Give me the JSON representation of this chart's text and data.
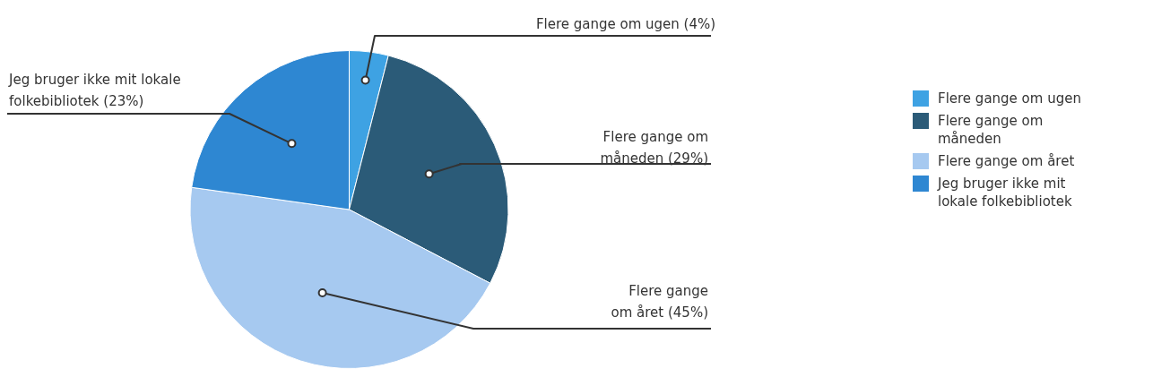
{
  "chart_data": {
    "type": "pie",
    "categories": [
      "Flere gange om ugen",
      "Flere gange om måneden",
      "Flere gange om året",
      "Jeg bruger ikke mit lokale folkebibliotek"
    ],
    "values": [
      4,
      29,
      45,
      23
    ],
    "colors": [
      "#3ea2e3",
      "#2b5b78",
      "#a6c9f0",
      "#2e87d2"
    ],
    "value_labels": [
      "Flere gange om ugen (4%)",
      "Flere gange om måneden (29%)",
      "Flere gange om året (45%)",
      "Jeg bruger ikke mit lokale folkebibliotek (23%)"
    ],
    "legend": "right"
  }
}
